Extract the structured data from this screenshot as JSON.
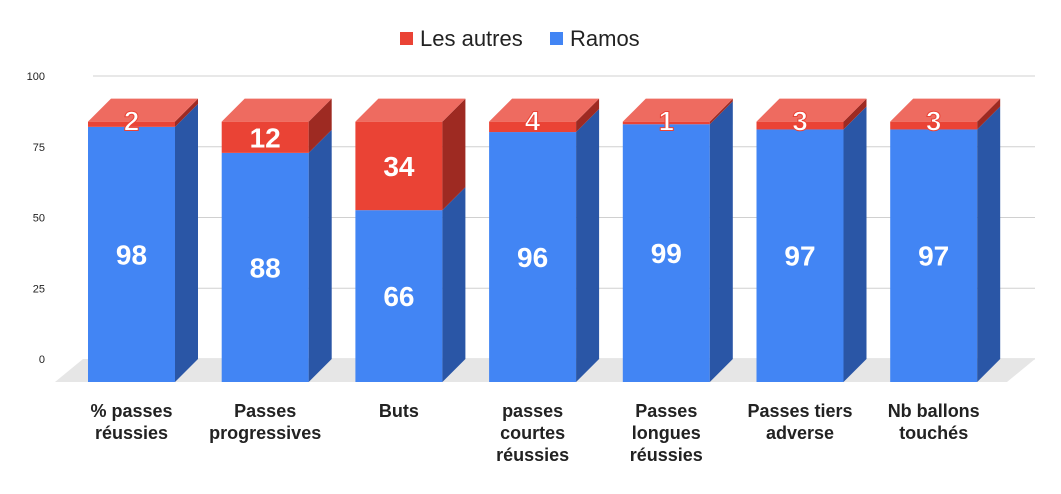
{
  "chart_data": {
    "type": "bar",
    "stacked": true,
    "three_d": true,
    "categories": [
      [
        "% passes",
        "réussies"
      ],
      [
        "Passes",
        "progressives"
      ],
      [
        "Buts"
      ],
      [
        "passes",
        "courtes",
        "réussies"
      ],
      [
        "Passes",
        "longues",
        "réussies"
      ],
      [
        "Passes tiers",
        "adverse"
      ],
      [
        "Nb ballons",
        "touchés"
      ]
    ],
    "series": [
      {
        "name": "Ramos",
        "values": [
          98,
          88,
          66,
          96,
          99,
          97,
          97
        ],
        "color": "#4285f4",
        "side_color": "#2a56a6"
      },
      {
        "name": "Les autres",
        "values": [
          2,
          12,
          34,
          4,
          1,
          3,
          3
        ],
        "color": "#ea4335",
        "side_color": "#9e2a22",
        "top_color": "#ee6b60"
      }
    ],
    "legend_order": [
      "Les autres",
      "Ramos"
    ],
    "legend_position": "top",
    "yticks": [
      "0",
      "25",
      "50",
      "75",
      "100"
    ],
    "ylim": [
      0,
      100
    ],
    "grid": true
  }
}
